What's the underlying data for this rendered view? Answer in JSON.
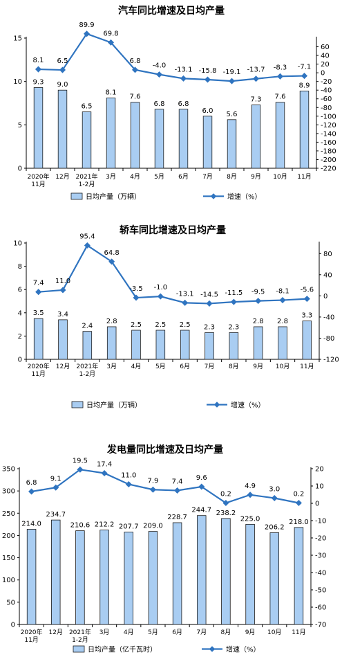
{
  "chart_data": [
    {
      "type": "bar+line",
      "title": "汽车同比增速及日均产量",
      "categories": [
        [
          "2020年",
          "11月"
        ],
        [
          "12月"
        ],
        [
          "2021年",
          "1-2月"
        ],
        [
          "3月"
        ],
        [
          "4月"
        ],
        [
          "5月"
        ],
        [
          "6月"
        ],
        [
          "7月"
        ],
        [
          "8月"
        ],
        [
          "9月"
        ],
        [
          "10月"
        ],
        [
          "11月"
        ]
      ],
      "bar_series": {
        "name": "日均产量（万辆）",
        "values": [
          9.3,
          9.0,
          6.5,
          8.1,
          7.6,
          6.8,
          6.8,
          6.0,
          5.6,
          7.3,
          7.6,
          8.9
        ],
        "labels": [
          "9.3",
          "9.0",
          "6.5",
          "8.1",
          "7.6",
          "6.8",
          "6.8",
          "6.0",
          "5.6",
          "7.3",
          "7.6",
          "8.9"
        ]
      },
      "line_series": {
        "name": "增速（%）",
        "values": [
          8.1,
          6.5,
          89.9,
          69.8,
          6.8,
          -4.0,
          -13.1,
          -15.8,
          -19.1,
          -13.7,
          -8.3,
          -7.1
        ],
        "labels": [
          "8.1",
          "6.5",
          "89.9",
          "69.8",
          "6.8",
          "-4.0",
          "-13.1",
          "-15.8",
          "-19.1",
          "-13.7",
          "-8.3",
          "-7.1"
        ]
      },
      "left_ticks": [
        "0",
        "5",
        "10",
        "15"
      ],
      "left_range": [
        0,
        15
      ],
      "right_ticks": [
        "60",
        "40",
        "20",
        "0",
        "-20",
        "-40",
        "-60",
        "-80",
        "-100",
        "-120",
        "-140",
        "-160",
        "-180",
        "-200",
        "-220"
      ],
      "right_range": [
        -220,
        80
      ],
      "bar_color": "#a9cdf2",
      "line_color": "#2f74c0"
    },
    {
      "type": "bar+line",
      "title": "轿车同比增速及日均产量",
      "categories": [
        [
          "2020年",
          "11月"
        ],
        [
          "12月"
        ],
        [
          "2021年",
          "1-2月"
        ],
        [
          "3月"
        ],
        [
          "4月"
        ],
        [
          "5月"
        ],
        [
          "6月"
        ],
        [
          "7月"
        ],
        [
          "8月"
        ],
        [
          "9月"
        ],
        [
          "10月"
        ],
        [
          "11月"
        ]
      ],
      "bar_series": {
        "name": "日均产量（万辆）",
        "values": [
          3.5,
          3.4,
          2.4,
          2.8,
          2.5,
          2.5,
          2.5,
          2.3,
          2.3,
          2.8,
          2.8,
          3.3
        ],
        "labels": [
          "3.5",
          "3.4",
          "2.4",
          "2.8",
          "2.5",
          "2.5",
          "2.5",
          "2.3",
          "2.3",
          "2.8",
          "2.8",
          "3.3"
        ]
      },
      "line_series": {
        "name": "增速（%）",
        "values": [
          7.4,
          11.0,
          95.4,
          64.8,
          -3.5,
          -1.0,
          -13.1,
          -14.5,
          -11.5,
          -9.5,
          -8.1,
          -5.6
        ],
        "labels": [
          "7.4",
          "11.0",
          "95.4",
          "64.8",
          "-3.5",
          "-1.0",
          "-13.1",
          "-14.5",
          "-11.5",
          "-9.5",
          "-8.1",
          "-5.6"
        ]
      },
      "left_ticks": [
        "0",
        "2",
        "4",
        "6",
        "8",
        "10"
      ],
      "left_range": [
        0,
        10
      ],
      "right_ticks": [
        "80",
        "40",
        "0",
        "-40",
        "-80",
        "-120"
      ],
      "right_range": [
        -120,
        100
      ],
      "bar_color": "#a9cdf2",
      "line_color": "#2f74c0"
    },
    {
      "type": "bar+line",
      "title": "发电量同比增速及日均产量",
      "categories": [
        [
          "2020年",
          "11月"
        ],
        [
          "12月"
        ],
        [
          "2021年",
          "1-2月"
        ],
        [
          "3月"
        ],
        [
          "4月"
        ],
        [
          "5月"
        ],
        [
          "6月"
        ],
        [
          "7月"
        ],
        [
          "8月"
        ],
        [
          "9月"
        ],
        [
          "10月"
        ],
        [
          "11月"
        ]
      ],
      "bar_series": {
        "name": "日均产量（亿千瓦时）",
        "values": [
          214.0,
          234.7,
          210.6,
          212.2,
          207.7,
          209.0,
          228.7,
          244.7,
          238.2,
          225.0,
          206.2,
          218.0
        ],
        "labels": [
          "214.0",
          "234.7",
          "210.6",
          "212.2",
          "207.7",
          "209.0",
          "228.7",
          "244.7",
          "238.2",
          "225.0",
          "206.2",
          "218.0"
        ]
      },
      "line_series": {
        "name": "增速（%）",
        "values": [
          6.8,
          9.1,
          19.5,
          17.4,
          11.0,
          7.9,
          7.4,
          9.6,
          0.2,
          4.9,
          3.0,
          0.2
        ],
        "labels": [
          "6.8",
          "9.1",
          "19.5",
          "17.4",
          "11.0",
          "7.9",
          "7.4",
          "9.6",
          "0.2",
          "4.9",
          "3.0",
          "0.2"
        ]
      },
      "left_ticks": [
        "0",
        "50",
        "100",
        "150",
        "200",
        "250",
        "300",
        "350"
      ],
      "left_range": [
        0,
        350
      ],
      "right_ticks": [
        "20",
        "10",
        "0",
        "-10",
        "-20",
        "-30",
        "-40",
        "-50",
        "-60",
        "-70"
      ],
      "right_range": [
        -70,
        20
      ],
      "bar_color": "#a9cdf2",
      "line_color": "#2f74c0"
    }
  ]
}
